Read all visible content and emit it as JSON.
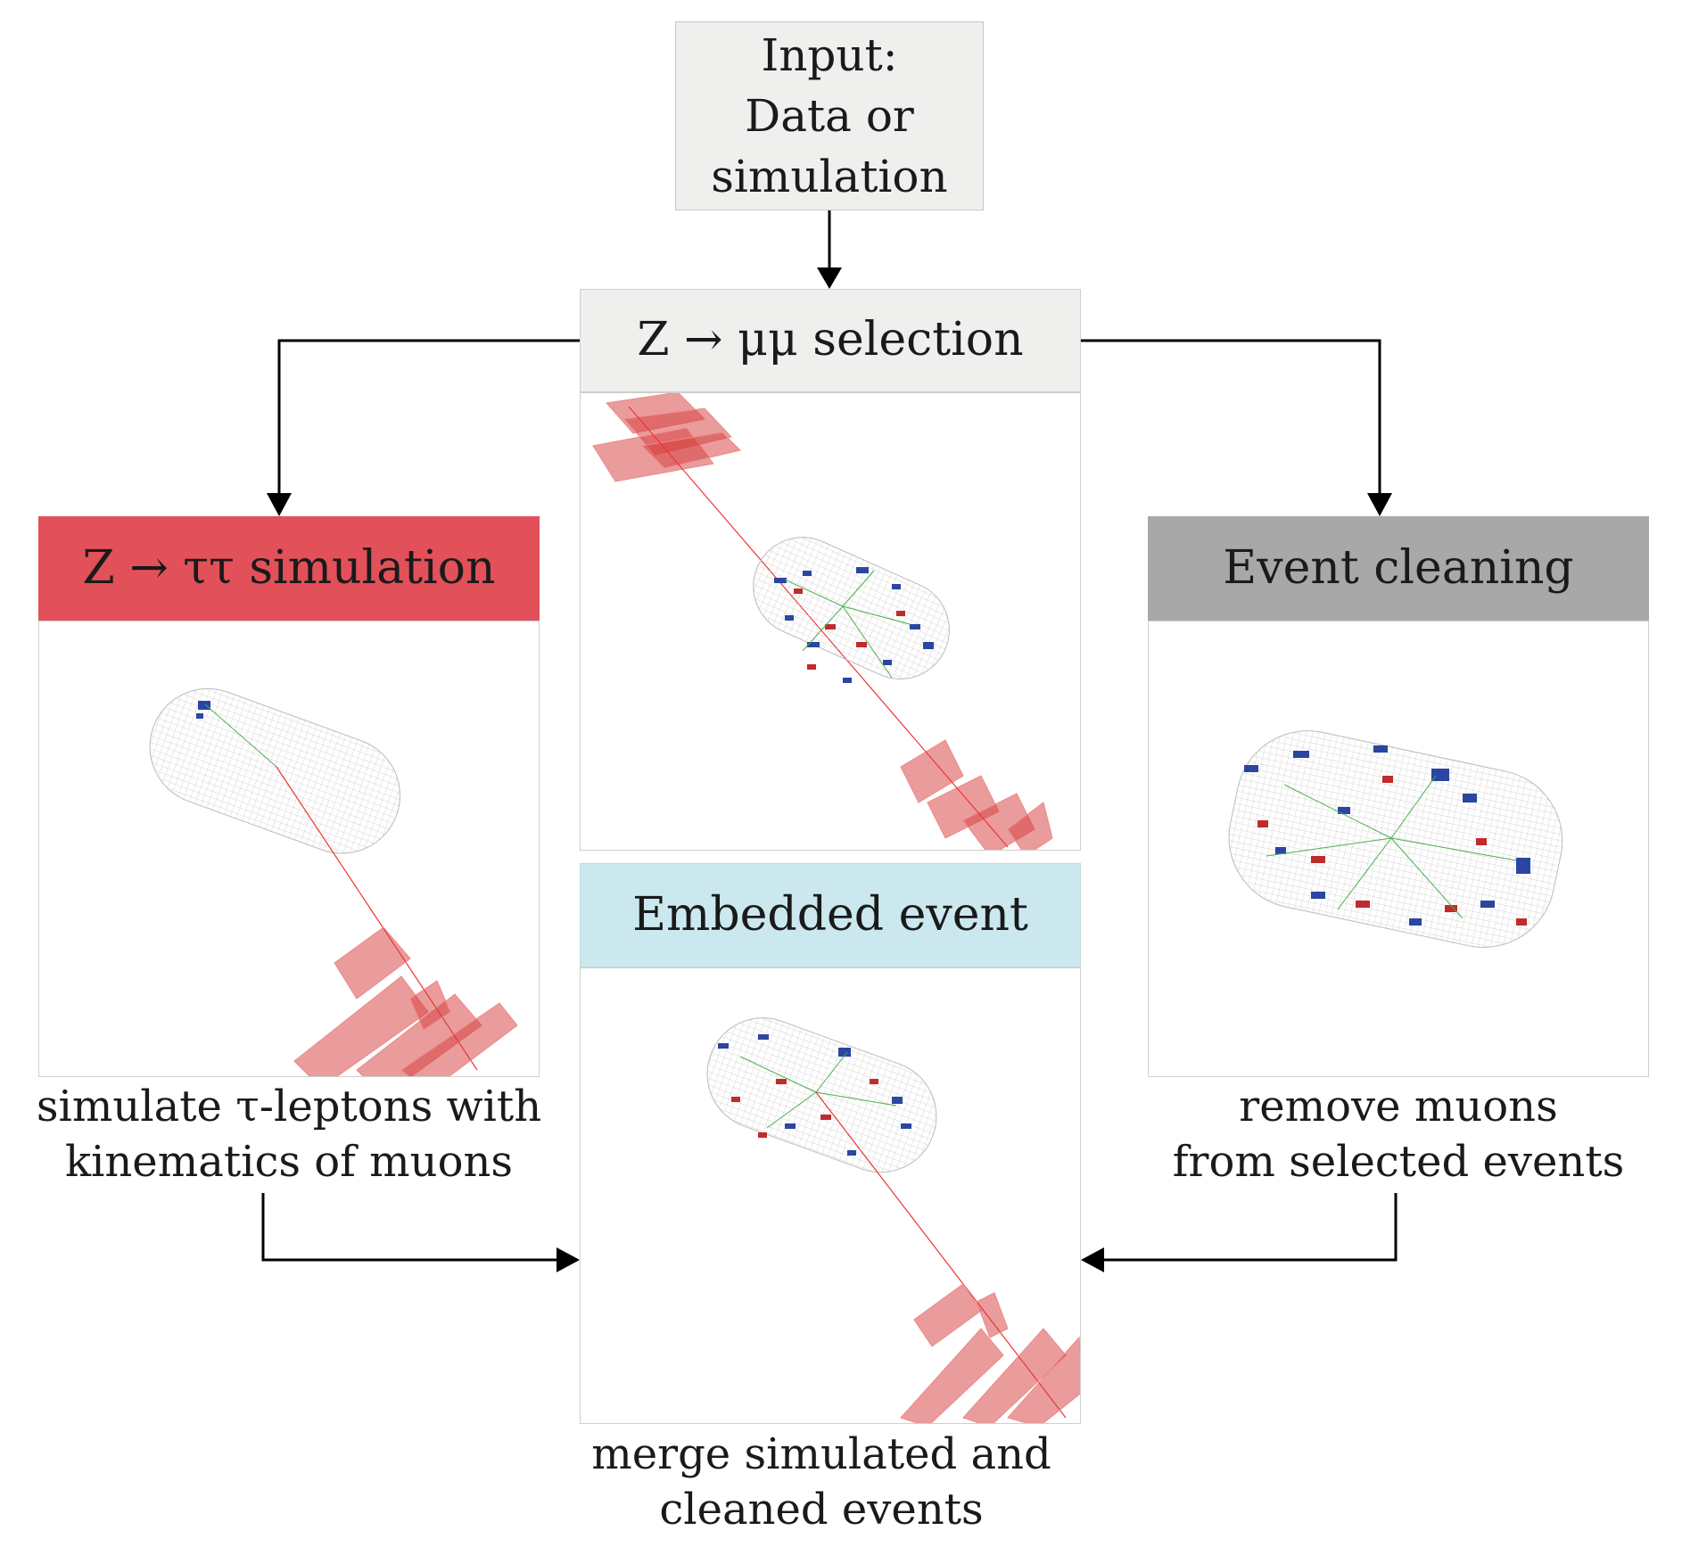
{
  "input": {
    "lines": [
      "Input:",
      "Data or",
      "simulation"
    ]
  },
  "selection": {
    "title": "Z → μμ selection"
  },
  "tau_sim": {
    "title": "Z → ττ simulation",
    "caption": [
      "simulate τ-leptons with",
      "kinematics of muons"
    ]
  },
  "cleaning": {
    "title": "Event cleaning",
    "caption": [
      "remove muons",
      "from selected events"
    ]
  },
  "embedded": {
    "title": "Embedded event",
    "caption": [
      "merge simulated and",
      "cleaned events"
    ]
  },
  "colors": {
    "tau_header": "#e2505a",
    "cleaning_header": "#a7a8a7",
    "embedded_header": "#cbe8ee",
    "neutral_header": "#efefed"
  }
}
